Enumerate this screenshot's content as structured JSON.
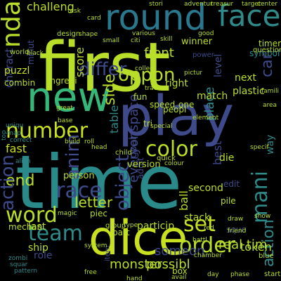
{
  "words": [
    {
      "text": "time",
      "color": "#2e8b8a"
    },
    {
      "text": "first",
      "color": "#b5de2b"
    },
    {
      "text": "play",
      "color": "#3e4a89"
    },
    {
      "text": "dice",
      "color": "#c4e02e"
    },
    {
      "text": "new",
      "color": "#35b779"
    },
    {
      "text": "round",
      "color": "#2a788e"
    },
    {
      "text": "face",
      "color": "#2e8b8a"
    },
    {
      "text": "number",
      "color": "#d3e02b"
    },
    {
      "text": "color",
      "color": "#b5de2b"
    },
    {
      "text": "word",
      "color": "#b5de2b"
    },
    {
      "text": "team",
      "color": "#2e8b8a"
    },
    {
      "text": "order",
      "color": "#b5de2b"
    },
    {
      "text": "race",
      "color": "#3e4a89"
    },
    {
      "text": "letter",
      "color": "#b5de2b"
    },
    {
      "text": "set",
      "color": "#c4e02e"
    },
    {
      "text": "differ",
      "color": "#2e8b8a"
    },
    {
      "text": "oppon",
      "color": "#3e4a89"
    },
    {
      "text": "end",
      "color": "#3e4a89"
    },
    {
      "text": "mani",
      "color": "#b5de2b"
    },
    {
      "text": "object",
      "color": "#b5de2b"
    },
    {
      "text": "side",
      "color": "#b5de2b"
    },
    {
      "text": "action",
      "color": "#2e8b8a"
    },
    {
      "text": "place",
      "color": "#b5de2b"
    },
    {
      "text": "table",
      "color": "#3e4a89"
    },
    {
      "text": "ndash",
      "color": "#3e4a89"
    },
    {
      "text": "anim",
      "color": "#c4e02e"
    },
    {
      "text": "everyonspace",
      "color": "#b5de2b"
    },
    {
      "text": "car",
      "color": "#b5de2b"
    },
    {
      "text": "score",
      "color": "#3e4a89"
    },
    {
      "text": "charact",
      "color": "#2e8b8a"
    },
    {
      "text": "way",
      "color": "#3e4a89"
    },
    {
      "text": "best",
      "color": "#b5de2b"
    },
    {
      "text": "level",
      "color": "#b5de2b"
    },
    {
      "text": "minut",
      "color": "#b5de2b"
    },
    {
      "text": "goal",
      "color": "#b5de2b"
    },
    {
      "text": "addit",
      "color": "#2e8b8a"
    },
    {
      "text": "ball",
      "color": "#c4e02e"
    },
    {
      "text": "item",
      "color": "#b5de2b"
    },
    {
      "text": "top",
      "color": "#b5de2b"
    },
    {
      "text": "fast",
      "color": "#b5de2b"
    },
    {
      "text": "challeng",
      "color": "#3e4a89"
    },
    {
      "text": "front",
      "color": "#3e4a89"
    },
    {
      "text": "winner",
      "color": "#b5de2b"
    },
    {
      "text": "timer",
      "color": "#b5de2b"
    },
    {
      "text": "symbol",
      "color": "#b5de2b"
    },
    {
      "text": "next",
      "color": "#b5de2b"
    },
    {
      "text": "puzzl",
      "color": "#3e4a89"
    },
    {
      "text": "combin",
      "color": "#3e4a89"
    },
    {
      "text": "ingredi",
      "color": "#2e8b8a"
    },
    {
      "text": "world",
      "color": "#b5de2b"
    },
    {
      "text": "fun",
      "color": "#b5de2b"
    },
    {
      "text": "right",
      "color": "#b5de2b"
    },
    {
      "text": "match",
      "color": "#b5de2b"
    },
    {
      "text": "plastic",
      "color": "#b5de2b"
    },
    {
      "text": "person",
      "color": "#b5de2b"
    },
    {
      "text": "version",
      "color": "#b5de2b"
    },
    {
      "text": "die",
      "color": "#b5de2b"
    },
    {
      "text": "pile",
      "color": "#b5de2b"
    },
    {
      "text": "stack",
      "color": "#b5de2b"
    },
    {
      "text": "second",
      "color": "#b5de2b"
    },
    {
      "text": "real tim",
      "color": "#3e4a89"
    },
    {
      "text": "token",
      "color": "#b5de2b"
    },
    {
      "text": "last",
      "color": "#b5de2b"
    },
    {
      "text": "ship",
      "color": "#3e4a89"
    },
    {
      "text": "role",
      "color": "#b5de2b"
    },
    {
      "text": "monster",
      "color": "#b5de2b"
    },
    {
      "text": "possibl",
      "color": "#b5de2b"
    },
    {
      "text": "someon",
      "color": "#b5de2b"
    },
    {
      "text": "mechan",
      "color": "#3e4a89"
    },
    {
      "text": "part",
      "color": "#3e4a89"
    },
    {
      "text": "particip",
      "color": "#3e4a89"
    },
    {
      "text": "box",
      "color": "#b5de2b"
    },
    {
      "text": "squo",
      "color": "#b5de2b"
    },
    {
      "text": "piec",
      "color": "#b5de2b"
    },
    {
      "text": "tri",
      "color": "#b5de2b"
    },
    {
      "text": "one",
      "color": "#b5de2b"
    },
    {
      "text": "speed",
      "color": "#3e4a89"
    },
    {
      "text": "peopl",
      "color": "#3e4a89"
    },
    {
      "text": "edit",
      "color": "#b5de2b"
    },
    {
      "text": "blue",
      "color": "#b5de2b"
    },
    {
      "text": "start",
      "color": "#b5de2b"
    },
    {
      "text": "group",
      "color": "#b5de2b"
    },
    {
      "text": "child",
      "color": "#b5de2b"
    },
    {
      "text": "quick",
      "color": "#b5de2b"
    },
    {
      "text": "design",
      "color": "#3e4a89"
    },
    {
      "text": "power",
      "color": "#b5de2b"
    },
    {
      "text": "question",
      "color": "#2e8b8a"
    },
    {
      "text": "uniqu",
      "color": "#2e8b8a"
    },
    {
      "text": "map",
      "color": "#2e8b8a"
    },
    {
      "text": "correct",
      "color": "#2e8b8a"
    },
    {
      "text": "alien",
      "color": "#2e8b8a"
    },
    {
      "text": "zombi",
      "color": "#2e8b8a"
    },
    {
      "text": "squar",
      "color": "#2e8b8a"
    },
    {
      "text": "pattern",
      "color": "#2e8b8a"
    },
    {
      "text": "build",
      "color": "#b5de2b"
    },
    {
      "text": "roll",
      "color": "#b5de2b"
    },
    {
      "text": "head",
      "color": "#b5de2b"
    },
    {
      "text": "magic",
      "color": "#b5de2b"
    },
    {
      "text": "type",
      "color": "#b5de2b"
    },
    {
      "text": "system",
      "color": "#3e4a89"
    },
    {
      "text": "free",
      "color": "#b5de2b"
    },
    {
      "text": "battl",
      "color": "#b5de2b"
    },
    {
      "text": "day",
      "color": "#b5de2b"
    },
    {
      "text": "phase",
      "color": "#b5de2b"
    },
    {
      "text": "friend",
      "color": "#b5de2b"
    },
    {
      "text": "red",
      "color": "#b5de2b"
    },
    {
      "text": "adventur",
      "color": "#b5de2b"
    },
    {
      "text": "treasur",
      "color": "#b5de2b"
    },
    {
      "text": "center",
      "color": "#b5de2b"
    },
    {
      "text": "skill",
      "color": "#b5de2b"
    },
    {
      "text": "good",
      "color": "#b5de2b"
    },
    {
      "text": "various",
      "color": "#b5de2b"
    },
    {
      "text": "task",
      "color": "#b5de2b"
    },
    {
      "text": "card",
      "color": "#b5de2b"
    },
    {
      "text": "small",
      "color": "#b5de2b"
    },
    {
      "text": "shape",
      "color": "#b5de2b"
    },
    {
      "text": "black",
      "color": "#b5de2b"
    },
    {
      "text": "citi",
      "color": "#b5de2b"
    },
    {
      "text": "stori",
      "color": "#b5de2b"
    },
    {
      "text": "collect",
      "color": "#b5de2b"
    },
    {
      "text": "track",
      "color": "#b5de2b"
    },
    {
      "text": "element",
      "color": "#b5de2b"
    },
    {
      "text": "special",
      "color": "#b5de2b"
    },
    {
      "text": "great",
      "color": "#b5de2b"
    },
    {
      "text": "base",
      "color": "#b5de2b"
    },
    {
      "text": "colour",
      "color": "#b5de2b"
    },
    {
      "text": "famili",
      "color": "#b5de2b"
    },
    {
      "text": "area",
      "color": "#b5de2b"
    },
    {
      "text": "show",
      "color": "#b5de2b"
    },
    {
      "text": "draw",
      "color": "#b5de2b"
    },
    {
      "text": "avail",
      "color": "#b5de2b"
    },
    {
      "text": "chamber",
      "color": "#b5de2b"
    },
    {
      "text": "pictur",
      "color": "#b5de2b"
    },
    {
      "text": "target",
      "color": "#b5de2b"
    },
    {
      "text": "specif",
      "color": "#b5de2b"
    },
    {
      "text": "hand",
      "color": "#b5de2b"
    },
    {
      "text": "use",
      "color": "#b5de2b"
    }
  ]
}
